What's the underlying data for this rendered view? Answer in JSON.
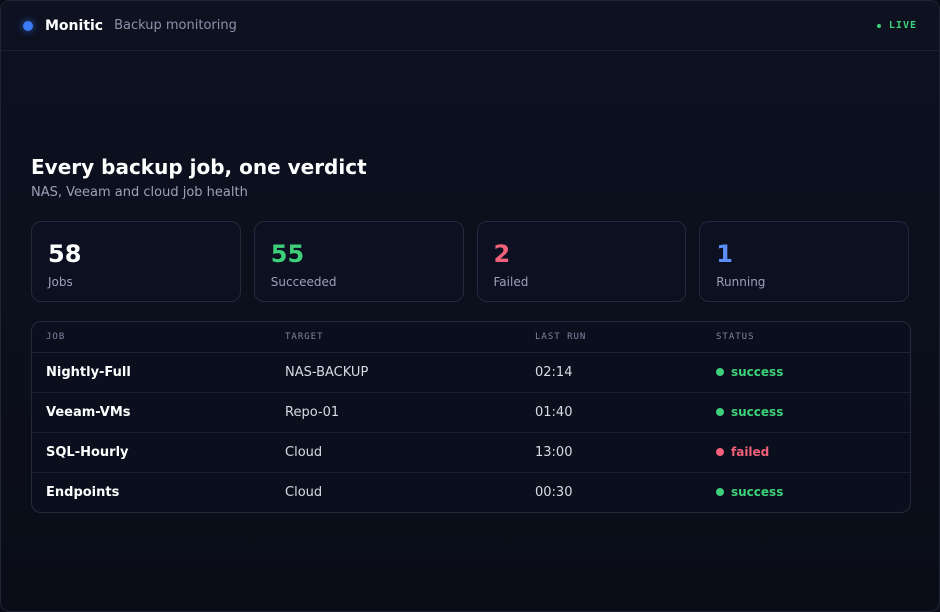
{
  "header": {
    "brand": "Monitic",
    "subtitle": "Backup monitoring",
    "live": "LIVE"
  },
  "hero": {
    "title": "Every backup job, one verdict",
    "subtitle": "NAS, Veeam and cloud job health"
  },
  "stats": [
    {
      "value": "58",
      "label": "Jobs"
    },
    {
      "value": "55",
      "label": "Succeeded"
    },
    {
      "value": "2",
      "label": "Failed"
    },
    {
      "value": "1",
      "label": "Running"
    }
  ],
  "table": {
    "columns": [
      "JOB",
      "TARGET",
      "LAST RUN",
      "STATUS"
    ],
    "rows": [
      {
        "job": "Nightly-Full",
        "target": "NAS-BACKUP",
        "last_run": "02:14",
        "status": "success"
      },
      {
        "job": "Veeam-VMs",
        "target": "Repo-01",
        "last_run": "01:40",
        "status": "success"
      },
      {
        "job": "SQL-Hourly",
        "target": "Cloud",
        "last_run": "13:00",
        "status": "failed"
      },
      {
        "job": "Endpoints",
        "target": "Cloud",
        "last_run": "00:30",
        "status": "success"
      }
    ]
  },
  "colors": {
    "accent": "#3b7bf5",
    "success": "#3ecf7a",
    "failed": "#f0607a",
    "running": "#5b8ff8"
  }
}
